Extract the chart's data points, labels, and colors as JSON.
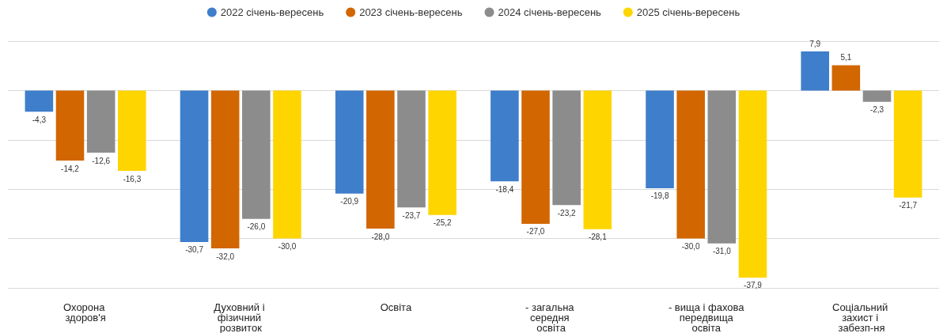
{
  "chart_data": {
    "type": "bar",
    "categories": [
      "Охорона здоров'я",
      "Духовний і фізичний розвиток",
      "Освіта",
      "- загальна середня освіта",
      "- вища і фахова передвища освіта",
      "Соціальний захист і забезп-ня"
    ],
    "series": [
      {
        "name": "2022 січень-вересень",
        "color": "#3f7ecb",
        "values": [
          -4.3,
          -30.7,
          -20.9,
          -18.4,
          -19.8,
          7.9
        ],
        "value_labels": [
          "-4,3",
          "-30,7",
          "-20,9",
          "-18,4",
          "-19,8",
          "7,9"
        ]
      },
      {
        "name": "2023 січень-вересень",
        "color": "#d26600",
        "values": [
          -14.2,
          -32.0,
          -28.0,
          -27.0,
          -30.0,
          5.1
        ],
        "value_labels": [
          "-14,2",
          "-32,0",
          "-28,0",
          "-27,0",
          "-30,0",
          "5,1"
        ]
      },
      {
        "name": "2024 січень-вересень",
        "color": "#8c8c8c",
        "values": [
          -12.6,
          -26.0,
          -23.7,
          -23.2,
          -31.0,
          -2.3
        ],
        "value_labels": [
          "-12,6",
          "-26,0",
          "-23,7",
          "-23,2",
          "-31,0",
          "-2,3"
        ]
      },
      {
        "name": "2025 січень-вересень",
        "color": "#ffd500",
        "values": [
          -16.3,
          -30.0,
          -25.2,
          -28.1,
          -37.9,
          -21.7
        ],
        "value_labels": [
          "-16,3",
          "-30,0",
          "-25,2",
          "-28,1",
          "-37,9",
          "-21,7"
        ]
      }
    ],
    "ylim": [
      -40,
      10
    ],
    "yticks": [
      {
        "value": -40,
        "label": null
      },
      {
        "value": -30,
        "label": null
      },
      {
        "value": -20,
        "label": null
      },
      {
        "value": -10,
        "label": null
      },
      {
        "value": 0,
        "label": null
      },
      {
        "value": 10,
        "label": null
      }
    ],
    "grid": "y",
    "legend": "top",
    "tick_labels": "x"
  }
}
